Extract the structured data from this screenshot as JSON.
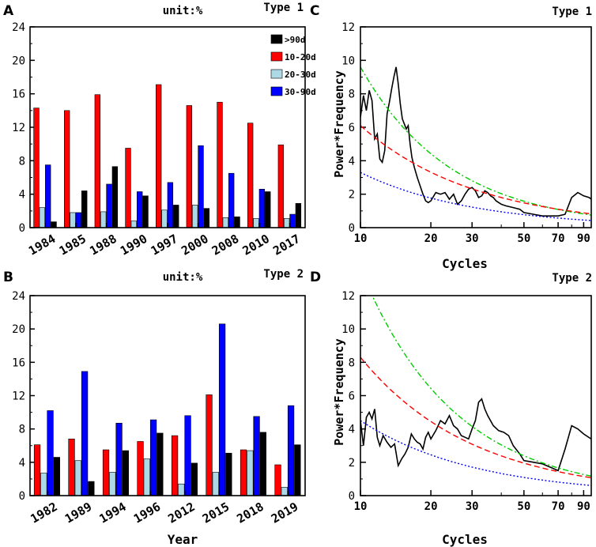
{
  "chart_data": [
    {
      "panel": "A",
      "type": "bar",
      "title": "unit:%",
      "type_label": "Type 1",
      "xlabel": "",
      "ylim": [
        0,
        24
      ],
      "yticks": [
        0,
        4,
        8,
        12,
        16,
        20,
        24
      ],
      "categories": [
        "1984",
        "1985",
        "1988",
        "1990",
        "1997",
        "2000",
        "2008",
        "2010",
        "2017"
      ],
      "series": [
        {
          "name": "10-20d",
          "color": "#ff0000",
          "values": [
            14.3,
            14.0,
            15.9,
            9.5,
            17.1,
            14.6,
            15.0,
            12.5,
            9.9
          ]
        },
        {
          "name": "20-30d",
          "color": "#add8e6",
          "values": [
            2.4,
            1.8,
            1.9,
            0.8,
            2.1,
            2.7,
            1.2,
            1.1,
            1.1
          ]
        },
        {
          "name": "30-90d",
          "color": "#0000ff",
          "values": [
            7.5,
            1.8,
            5.2,
            4.3,
            5.4,
            9.8,
            6.5,
            4.6,
            1.6
          ]
        },
        {
          "name": ">90d",
          "color": "#000000",
          "values": [
            0.7,
            4.4,
            7.3,
            3.8,
            2.7,
            2.3,
            1.3,
            4.3,
            2.9
          ]
        }
      ],
      "legend": {
        "position": "top-right",
        "entries": [
          {
            "label": ">90d",
            "color": "#000000"
          },
          {
            "label": "10-20d",
            "color": "#ff0000"
          },
          {
            "label": "20-30d",
            "color": "#add8e6"
          },
          {
            "label": "30-90d",
            "color": "#0000ff"
          }
        ]
      }
    },
    {
      "panel": "B",
      "type": "bar",
      "title": "unit:%",
      "type_label": "Type 2",
      "xlabel": "Year",
      "ylim": [
        0,
        24
      ],
      "yticks": [
        0,
        4,
        8,
        12,
        16,
        20,
        24
      ],
      "categories": [
        "1982",
        "1989",
        "1994",
        "1996",
        "2012",
        "2015",
        "2018",
        "2019"
      ],
      "series": [
        {
          "name": "10-20d",
          "color": "#ff0000",
          "values": [
            6.1,
            6.8,
            5.5,
            6.5,
            7.2,
            12.1,
            5.5,
            3.7
          ]
        },
        {
          "name": "20-30d",
          "color": "#add8e6",
          "values": [
            2.7,
            4.2,
            2.8,
            4.4,
            1.4,
            2.8,
            5.4,
            1.0
          ]
        },
        {
          "name": "30-90d",
          "color": "#0000ff",
          "values": [
            10.2,
            14.9,
            8.7,
            9.1,
            9.6,
            20.6,
            9.5,
            10.8
          ]
        },
        {
          "name": ">90d",
          "color": "#000000",
          "values": [
            4.6,
            1.7,
            5.4,
            7.5,
            3.9,
            5.1,
            7.6,
            6.1
          ]
        }
      ]
    },
    {
      "panel": "C",
      "type": "line",
      "type_label": "Type 1",
      "xlabel": "Cycles",
      "ylabel": "Power*Frequency",
      "xscale": "log",
      "xlim": [
        10,
        97
      ],
      "ylim": [
        0,
        12
      ],
      "xticks": [
        10,
        20,
        30,
        50,
        70,
        90
      ],
      "yticks": [
        0,
        2,
        4,
        6,
        8,
        10,
        12
      ],
      "series": [
        {
          "name": "spectrum",
          "color": "#000000",
          "style": "solid",
          "x": [
            10,
            10.3,
            10.6,
            10.9,
            11.2,
            11.5,
            11.8,
            12.1,
            12.4,
            12.7,
            13.0,
            13.3,
            13.6,
            13.9,
            14.2,
            14.5,
            14.8,
            15.1,
            15.4,
            15.7,
            16.0,
            16.3,
            16.6,
            17.0,
            17.5,
            18.0,
            18.5,
            19.0,
            19.5,
            20.0,
            21.0,
            22.0,
            23.0,
            24.0,
            25.0,
            26.0,
            27.0,
            28.0,
            29.0,
            30.0,
            31.0,
            32.0,
            33.0,
            34.0,
            35.0,
            36.0,
            37.0,
            38.0,
            40.0,
            42.0,
            45.0,
            48.0,
            50.0,
            55.0,
            60.0,
            65.0,
            70.0,
            75.0,
            80.0,
            85.0,
            90.0,
            95.0,
            97.0
          ],
          "y": [
            6.6,
            7.9,
            7.0,
            8.2,
            7.6,
            5.3,
            5.6,
            4.1,
            3.9,
            4.6,
            6.8,
            7.5,
            8.3,
            9.0,
            9.6,
            8.6,
            7.4,
            6.5,
            6.2,
            5.9,
            6.1,
            5.0,
            4.2,
            3.6,
            3.0,
            2.5,
            2.0,
            1.6,
            1.5,
            1.6,
            2.1,
            2.0,
            2.1,
            1.7,
            2.0,
            1.4,
            1.6,
            2.0,
            2.3,
            2.4,
            2.2,
            1.8,
            1.9,
            2.2,
            2.1,
            1.9,
            1.8,
            1.6,
            1.4,
            1.3,
            1.2,
            1.1,
            0.9,
            0.8,
            0.7,
            0.7,
            0.7,
            0.8,
            1.8,
            2.1,
            1.9,
            1.8,
            1.7
          ]
        },
        {
          "name": "green",
          "color": "#00cc00",
          "style": "dashdot",
          "curve": {
            "a": 9.6,
            "p": 1.12
          }
        },
        {
          "name": "red",
          "color": "#ff0000",
          "style": "dashed",
          "curve": {
            "a": 6.1,
            "p": 0.88
          }
        },
        {
          "name": "blue",
          "color": "#0000ff",
          "style": "dotted",
          "curve": {
            "a": 3.3,
            "p": 0.9
          }
        }
      ]
    },
    {
      "panel": "D",
      "type": "line",
      "type_label": "Type 2",
      "xlabel": "Cycles",
      "ylabel": "Power*Frequency",
      "xscale": "log",
      "xlim": [
        10,
        97
      ],
      "ylim": [
        0,
        12
      ],
      "xticks": [
        10,
        20,
        30,
        50,
        70,
        90
      ],
      "yticks": [
        0,
        2,
        4,
        6,
        8,
        10,
        12
      ],
      "series": [
        {
          "name": "spectrum",
          "color": "#000000",
          "style": "solid",
          "x": [
            10,
            10.3,
            10.6,
            10.9,
            11.2,
            11.5,
            11.8,
            12.1,
            12.5,
            13.0,
            13.5,
            14.0,
            14.5,
            15.0,
            15.5,
            16.0,
            16.5,
            17.0,
            17.5,
            18.0,
            18.5,
            19.0,
            19.5,
            20.0,
            21.0,
            22.0,
            23.0,
            24.0,
            25.0,
            26.0,
            27.0,
            28.0,
            29.0,
            30.0,
            31.0,
            32.0,
            33.0,
            34.0,
            35.0,
            37.0,
            39.0,
            41.0,
            43.0,
            45.0,
            48.0,
            50.0,
            55.0,
            60.0,
            65.0,
            70.0,
            75.0,
            80.0,
            85.0,
            90.0,
            97.0
          ],
          "y": [
            4.5,
            3.0,
            4.7,
            5.0,
            4.6,
            5.2,
            3.5,
            3.0,
            3.6,
            3.2,
            2.9,
            3.1,
            1.8,
            2.2,
            2.5,
            2.9,
            3.7,
            3.4,
            3.2,
            3.1,
            2.8,
            3.5,
            3.8,
            3.4,
            3.9,
            4.5,
            4.3,
            4.8,
            4.2,
            4.0,
            3.6,
            3.5,
            3.4,
            4.0,
            4.5,
            5.6,
            5.8,
            5.2,
            4.8,
            4.2,
            3.9,
            3.8,
            3.6,
            3.0,
            2.5,
            2.1,
            2.0,
            1.9,
            1.7,
            1.5,
            2.8,
            4.2,
            4.0,
            3.7,
            3.4
          ]
        },
        {
          "name": "green",
          "color": "#00cc00",
          "style": "dashdot",
          "curve": {
            "a": 13.6,
            "p": 1.08
          }
        },
        {
          "name": "red",
          "color": "#ff0000",
          "style": "dashed",
          "curve": {
            "a": 8.3,
            "p": 0.9
          }
        },
        {
          "name": "blue",
          "color": "#0000ff",
          "style": "dotted",
          "curve": {
            "a": 4.5,
            "p": 0.88
          }
        }
      ]
    }
  ]
}
